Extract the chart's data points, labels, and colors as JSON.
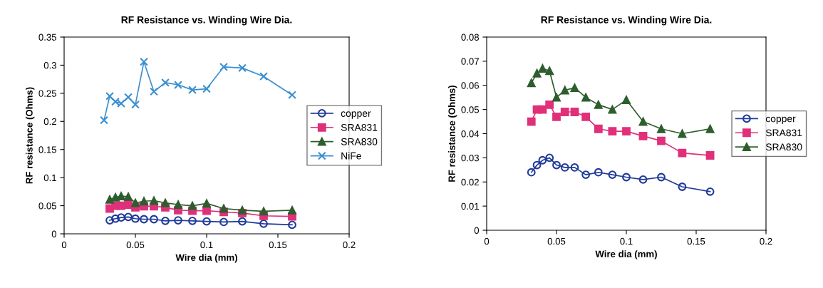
{
  "chart_data": [
    {
      "type": "line",
      "title": "RF Resistance vs. Winding Wire Dia.",
      "xlabel": "Wire dia (mm)",
      "ylabel": "RF resistance (Ohms)",
      "xlim": [
        0,
        0.2
      ],
      "xticks": [
        0,
        0.05,
        0.1,
        0.15,
        0.2
      ],
      "ylim": [
        0,
        0.35
      ],
      "yticks": [
        0,
        0.05,
        0.1,
        0.15,
        0.2,
        0.25,
        0.3,
        0.35
      ],
      "grid": false,
      "legend": "right",
      "series": [
        {
          "name": "copper",
          "color": "#1f3a9a",
          "marker": "circle",
          "x": [
            0.032,
            0.036,
            0.04,
            0.045,
            0.05,
            0.056,
            0.063,
            0.071,
            0.08,
            0.09,
            0.1,
            0.112,
            0.125,
            0.14,
            0.16
          ],
          "values": [
            0.024,
            0.027,
            0.029,
            0.03,
            0.027,
            0.026,
            0.026,
            0.023,
            0.024,
            0.023,
            0.022,
            0.021,
            0.022,
            0.018,
            0.016
          ]
        },
        {
          "name": "SRA831",
          "color": "#e0307a",
          "marker": "square",
          "x": [
            0.032,
            0.036,
            0.04,
            0.045,
            0.05,
            0.056,
            0.063,
            0.071,
            0.08,
            0.09,
            0.1,
            0.112,
            0.125,
            0.14,
            0.16
          ],
          "values": [
            0.045,
            0.05,
            0.05,
            0.052,
            0.047,
            0.049,
            0.049,
            0.047,
            0.042,
            0.041,
            0.041,
            0.039,
            0.037,
            0.032,
            0.031
          ]
        },
        {
          "name": "SRA830",
          "color": "#2e5e2e",
          "marker": "triangle",
          "x": [
            0.032,
            0.036,
            0.04,
            0.045,
            0.05,
            0.056,
            0.063,
            0.071,
            0.08,
            0.09,
            0.1,
            0.112,
            0.125,
            0.14,
            0.16
          ],
          "values": [
            0.061,
            0.065,
            0.067,
            0.066,
            0.055,
            0.058,
            0.059,
            0.055,
            0.052,
            0.05,
            0.054,
            0.045,
            0.042,
            0.04,
            0.042
          ]
        },
        {
          "name": "NiFe",
          "color": "#3a8fd0",
          "marker": "cross",
          "x": [
            0.028,
            0.032,
            0.036,
            0.04,
            0.045,
            0.05,
            0.056,
            0.063,
            0.071,
            0.08,
            0.09,
            0.1,
            0.112,
            0.125,
            0.14,
            0.16
          ],
          "values": [
            0.202,
            0.245,
            0.235,
            0.232,
            0.243,
            0.23,
            0.306,
            0.253,
            0.269,
            0.265,
            0.256,
            0.258,
            0.297,
            0.295,
            0.28,
            0.247
          ]
        }
      ]
    },
    {
      "type": "line",
      "title": "RF Resistance vs. Winding Wire Dia.",
      "xlabel": "Wire dia (mm)",
      "ylabel": "RF resistance (Ohms)",
      "xlim": [
        0,
        0.2
      ],
      "xticks": [
        0,
        0.05,
        0.1,
        0.15,
        0.2
      ],
      "ylim": [
        0,
        0.08
      ],
      "yticks": [
        0,
        0.01,
        0.02,
        0.03,
        0.04,
        0.05,
        0.06,
        0.07,
        0.08
      ],
      "grid": false,
      "legend": "right",
      "series": [
        {
          "name": "copper",
          "color": "#1f3a9a",
          "marker": "circle",
          "x": [
            0.032,
            0.036,
            0.04,
            0.045,
            0.05,
            0.056,
            0.063,
            0.071,
            0.08,
            0.09,
            0.1,
            0.112,
            0.125,
            0.14,
            0.16
          ],
          "values": [
            0.024,
            0.027,
            0.029,
            0.03,
            0.027,
            0.026,
            0.026,
            0.023,
            0.024,
            0.023,
            0.022,
            0.021,
            0.022,
            0.018,
            0.016
          ]
        },
        {
          "name": "SRA831",
          "color": "#e0307a",
          "marker": "square",
          "x": [
            0.032,
            0.036,
            0.04,
            0.045,
            0.05,
            0.056,
            0.063,
            0.071,
            0.08,
            0.09,
            0.1,
            0.112,
            0.125,
            0.14,
            0.16
          ],
          "values": [
            0.045,
            0.05,
            0.05,
            0.052,
            0.047,
            0.049,
            0.049,
            0.047,
            0.042,
            0.041,
            0.041,
            0.039,
            0.037,
            0.032,
            0.031
          ]
        },
        {
          "name": "SRA830",
          "color": "#2e5e2e",
          "marker": "triangle",
          "x": [
            0.032,
            0.036,
            0.04,
            0.045,
            0.05,
            0.056,
            0.063,
            0.071,
            0.08,
            0.09,
            0.1,
            0.112,
            0.125,
            0.14,
            0.16
          ],
          "values": [
            0.061,
            0.065,
            0.067,
            0.066,
            0.055,
            0.058,
            0.059,
            0.055,
            0.052,
            0.05,
            0.054,
            0.045,
            0.042,
            0.04,
            0.042
          ]
        }
      ]
    }
  ]
}
